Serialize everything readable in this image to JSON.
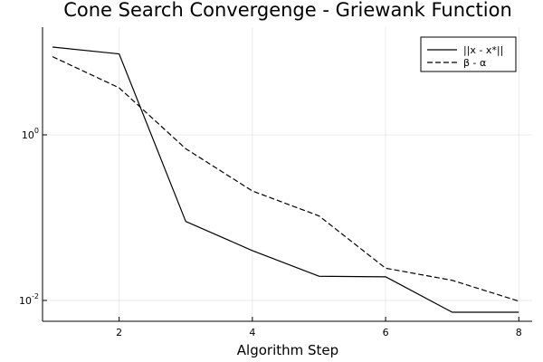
{
  "chart_data": {
    "type": "line",
    "title": "Cone Search Convergenge - Griewank Function",
    "xlabel": "Algorithm Step",
    "ylabel": "",
    "yscale": "log10",
    "xlim": [
      0.85,
      8.2
    ],
    "ylim": [
      0.0056,
      20.0
    ],
    "x_ticks": [
      2,
      4,
      6,
      8
    ],
    "y_ticks": [
      {
        "value": 1,
        "base": "10",
        "exponent": "0"
      },
      {
        "value": 0.01,
        "base": "10",
        "exponent": "-2"
      }
    ],
    "grid": true,
    "legend_position": "top-right",
    "series": [
      {
        "name": "||x - x*||",
        "style": "solid",
        "color": "#000000",
        "x": [
          1,
          2,
          3,
          4,
          5,
          6,
          7,
          8
        ],
        "y": [
          11.5,
          9.5,
          0.09,
          0.04,
          0.0196,
          0.0193,
          0.0072,
          0.0072
        ]
      },
      {
        "name": "β - α",
        "style": "dashed",
        "color": "#000000",
        "x": [
          1,
          2,
          3,
          4,
          5,
          6,
          7,
          8
        ],
        "y": [
          8.8,
          3.7,
          0.68,
          0.21,
          0.105,
          0.0245,
          0.0175,
          0.0098
        ]
      }
    ]
  }
}
